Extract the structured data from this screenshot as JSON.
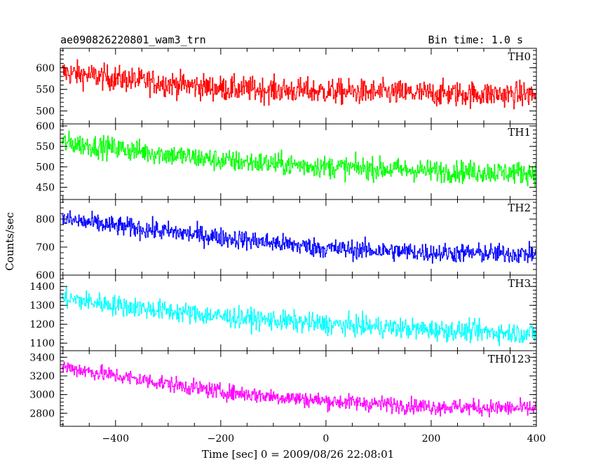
{
  "header": {
    "title": "ae090826220801_wam3_trn",
    "bin_time": "Bin time: 1.0 s"
  },
  "ylabel": "Counts/sec",
  "xlabel": "Time [sec] 0 = 2009/08/26 22:08:01",
  "chart_data": {
    "type": "line",
    "x_range": [
      -505,
      400
    ],
    "x_ticks": [
      -400,
      -200,
      0,
      200,
      400
    ],
    "x_tick_labels": [
      "−400",
      "−200",
      "0",
      "200",
      "400"
    ],
    "xlabel": "Time [sec] 0 = 2009/08/26 22:08:01",
    "ylabel": "Counts/sec",
    "grid": false,
    "bin_time_s": 1.0,
    "panels": [
      {
        "name": "TH0",
        "color": "#ff0000",
        "ylim": [
          470,
          645
        ],
        "y_ticks": [
          500,
          550,
          600
        ],
        "trend": [
          [
            -505,
            590
          ],
          [
            -400,
            575
          ],
          [
            -200,
            552
          ],
          [
            0,
            545
          ],
          [
            200,
            540
          ],
          [
            400,
            538
          ]
        ],
        "noise_amplitude": 38
      },
      {
        "name": "TH1",
        "color": "#00ff00",
        "ylim": [
          420,
          605
        ],
        "y_ticks": [
          450,
          500,
          550,
          600
        ],
        "trend": [
          [
            -505,
            560
          ],
          [
            -400,
            545
          ],
          [
            -200,
            515
          ],
          [
            0,
            500
          ],
          [
            200,
            490
          ],
          [
            400,
            485
          ]
        ],
        "noise_amplitude": 35
      },
      {
        "name": "TH2",
        "color": "#0000ff",
        "ylim": [
          600,
          870
        ],
        "y_ticks": [
          600,
          700,
          800
        ],
        "trend": [
          [
            -505,
            800
          ],
          [
            -400,
            775
          ],
          [
            -200,
            735
          ],
          [
            0,
            695
          ],
          [
            200,
            680
          ],
          [
            400,
            675
          ]
        ],
        "noise_amplitude": 45
      },
      {
        "name": "TH3",
        "color": "#00ffff",
        "ylim": [
          1060,
          1460
        ],
        "y_ticks": [
          1100,
          1200,
          1300,
          1400
        ],
        "trend": [
          [
            -505,
            1340
          ],
          [
            -400,
            1300
          ],
          [
            -200,
            1240
          ],
          [
            0,
            1200
          ],
          [
            200,
            1170
          ],
          [
            400,
            1150
          ]
        ],
        "noise_amplitude": 70
      },
      {
        "name": "TH0123",
        "color": "#ff00ff",
        "ylim": [
          2660,
          3470
        ],
        "y_ticks": [
          2800,
          3000,
          3200,
          3400
        ],
        "trend": [
          [
            -505,
            3300
          ],
          [
            -400,
            3200
          ],
          [
            -200,
            3030
          ],
          [
            0,
            2930
          ],
          [
            200,
            2870
          ],
          [
            400,
            2850
          ]
        ],
        "noise_amplitude": 110
      }
    ]
  }
}
